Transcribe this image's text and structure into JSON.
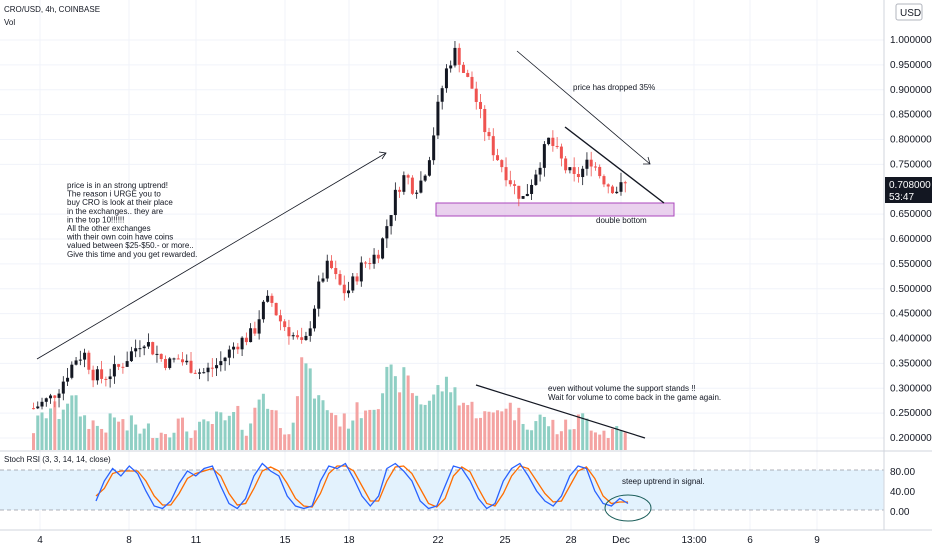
{
  "header": {
    "symbol": "CRO/USD, 4h, COINBASE",
    "vol_label": "Vol",
    "currency": "USD"
  },
  "price_box": {
    "price": "0.708000",
    "countdown": "53:47"
  },
  "rsi": {
    "label": "Stoch RSI (3, 3, 14, 14, close)",
    "ticks": [
      "80.00",
      "40.00",
      "0.00"
    ],
    "annotation": "steep uptrend in signal."
  },
  "annotations": {
    "left_note": [
      "price is in an strong uptrend!",
      "The reason i URGE you to",
      "buy CRO is look at their place",
      "in the exchanges.. they are",
      "in the top 10!!!!!!",
      "All the other exchanges",
      "with their own coin have coins",
      "valued between $25-$50.- or more..",
      "",
      "Give this time and you get rewarded."
    ],
    "drop_note": "price has dropped 35%",
    "double_bottom": "double bottom",
    "volume_note": [
      "even without volume the support stands !!",
      "Wait for volume to come back in the game again."
    ]
  },
  "colors": {
    "up": "#26a69a",
    "down": "#ef5350",
    "up_candle": "#131722",
    "down_candle": "#ef5350",
    "vol_up": "#8fcfc4",
    "vol_down": "#f4a3a2",
    "rsi_k": "#2962ff",
    "rsi_d": "#ff6d00",
    "support_zone": "#e1bee7",
    "support_border": "#ab47bc",
    "rsi_band": "#e3f2fd"
  },
  "chart_data": {
    "type": "candlestick",
    "price_axis": {
      "ticks": [
        "1.000000",
        "0.950000",
        "0.900000",
        "0.850000",
        "0.800000",
        "0.750000",
        "0.650000",
        "0.600000",
        "0.550000",
        "0.500000",
        "0.450000",
        "0.400000",
        "0.350000",
        "0.300000",
        "0.250000",
        "0.200000"
      ],
      "range": [
        0.175,
        1.04
      ]
    },
    "time_axis": {
      "labels": [
        "4",
        "8",
        "11",
        "15",
        "18",
        "22",
        "25",
        "28",
        "Dec",
        "13:00",
        "6",
        "9"
      ]
    },
    "support_zone": [
      0.655,
      0.67
    ],
    "close_path": [
      0.26,
      0.27,
      0.28,
      0.3,
      0.33,
      0.36,
      0.37,
      0.33,
      0.32,
      0.33,
      0.34,
      0.36,
      0.38,
      0.4,
      0.38,
      0.36,
      0.35,
      0.36,
      0.35,
      0.34,
      0.33,
      0.34,
      0.35,
      0.37,
      0.39,
      0.4,
      0.41,
      0.46,
      0.48,
      0.44,
      0.42,
      0.4,
      0.38,
      0.45,
      0.52,
      0.55,
      0.51,
      0.49,
      0.52,
      0.55,
      0.56,
      0.58,
      0.64,
      0.7,
      0.73,
      0.7,
      0.72,
      0.78,
      0.88,
      0.95,
      0.98,
      0.93,
      0.9,
      0.84,
      0.79,
      0.76,
      0.73,
      0.7,
      0.68,
      0.72,
      0.76,
      0.8,
      0.77,
      0.74,
      0.72,
      0.74,
      0.76,
      0.73,
      0.71,
      0.7,
      0.708
    ],
    "volume_path": [
      0.22,
      0.24,
      0.26,
      0.25,
      0.28,
      0.27,
      0.24,
      0.23,
      0.22,
      0.23,
      0.24,
      0.22,
      0.23,
      0.21,
      0.22,
      0.21,
      0.22,
      0.23,
      0.22,
      0.21,
      0.22,
      0.23,
      0.24,
      0.23,
      0.25,
      0.22,
      0.24,
      0.3,
      0.26,
      0.24,
      0.22,
      0.25,
      0.38,
      0.3,
      0.27,
      0.26,
      0.24,
      0.23,
      0.25,
      0.26,
      0.27,
      0.28,
      0.34,
      0.3,
      0.33,
      0.29,
      0.27,
      0.28,
      0.3,
      0.31,
      0.29,
      0.27,
      0.26,
      0.25,
      0.24,
      0.26,
      0.27,
      0.25,
      0.24,
      0.23,
      0.24,
      0.23,
      0.22,
      0.22,
      0.23,
      0.24,
      0.23,
      0.22,
      0.21,
      0.22,
      0.21
    ],
    "rsi_k": [
      20,
      60,
      85,
      70,
      90,
      75,
      40,
      10,
      5,
      20,
      55,
      80,
      70,
      85,
      90,
      50,
      15,
      5,
      25,
      70,
      95,
      80,
      70,
      30,
      10,
      5,
      10,
      60,
      90,
      85,
      95,
      65,
      30,
      10,
      30,
      85,
      95,
      80,
      60,
      20,
      5,
      10,
      50,
      90,
      85,
      60,
      25,
      5,
      15,
      60,
      85,
      95,
      70,
      40,
      20,
      10,
      30,
      70,
      90,
      85,
      40,
      15,
      10,
      25,
      15
    ],
    "rsi_d": [
      30,
      45,
      75,
      80,
      80,
      80,
      60,
      30,
      12,
      12,
      35,
      65,
      75,
      80,
      85,
      70,
      35,
      12,
      15,
      45,
      80,
      88,
      80,
      55,
      25,
      10,
      8,
      35,
      75,
      90,
      90,
      80,
      50,
      20,
      20,
      60,
      88,
      90,
      75,
      45,
      15,
      8,
      25,
      70,
      88,
      78,
      45,
      15,
      10,
      35,
      70,
      90,
      85,
      60,
      35,
      18,
      20,
      50,
      80,
      88,
      65,
      30,
      15,
      18,
      18
    ]
  }
}
